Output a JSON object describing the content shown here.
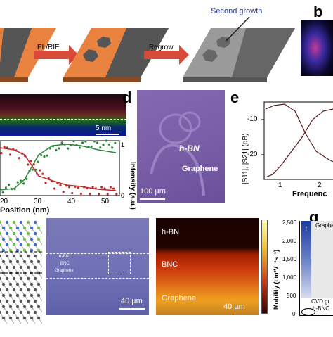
{
  "panel_a": {
    "arrow1_label": "PL/RIE",
    "arrow2_label": "Regrow",
    "annotation": "Second growth"
  },
  "panel_b": {
    "letter": "b"
  },
  "panel_c": {
    "scale_label": "5 nm",
    "xlabel": "Position (nm)",
    "ylabel": "Intensity (a.u.)",
    "xticks": [
      "20",
      "30",
      "40",
      "50"
    ],
    "yticks": [
      "1",
      "0"
    ]
  },
  "panel_d": {
    "letter": "d",
    "label_hbn": "h-BN",
    "label_graphene": "Graphene",
    "scale_label": "100 µm"
  },
  "panel_e": {
    "letter": "e",
    "ylabel": "|S11|, |S21| (dB)",
    "yticks": [
      "-10",
      "-20"
    ],
    "xticks": [
      "1",
      "2"
    ],
    "xlabel": "Frequenc"
  },
  "panel_f": {
    "optical_labels": [
      "h-BN",
      "BNC",
      "Graphene"
    ],
    "optical_scale": "40 µm",
    "map_labels": [
      "h-BN",
      "BNC",
      "Graphene"
    ],
    "map_scale": "40 µm"
  },
  "panel_g": {
    "letter": "g",
    "ylabel": "Mobility (cm²V⁻¹s⁻¹)",
    "yticks": [
      "2,500",
      "2,000",
      "1,500",
      "1,000",
      "500",
      "0"
    ],
    "label_graphene": "Graphe",
    "label_cvd": "CVD gr",
    "label_hbnc": "h-BNC"
  },
  "colors": {
    "substrate": "#e8823e",
    "graphene_strip": "#4a4a4a",
    "optical_bg": "#6f6fb5",
    "panel_d_bg": "#7a5fa8"
  }
}
